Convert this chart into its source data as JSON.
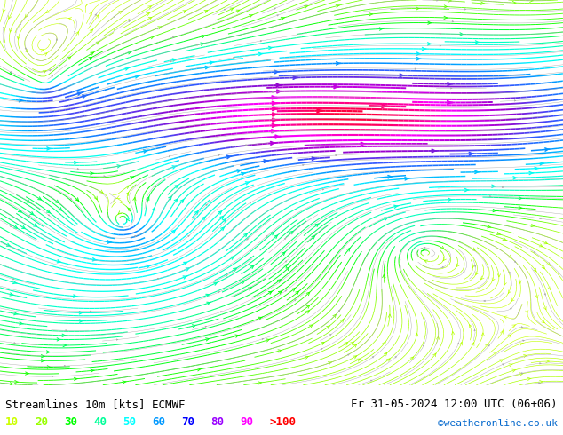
{
  "title_left": "Streamlines 10m [kts] ECMWF",
  "title_right": "Fr 31-05-2024 12:00 UTC (06+06)",
  "watermark": "©weatheronline.co.uk",
  "legend_values": [
    "10",
    "20",
    "30",
    "40",
    "50",
    "60",
    "70",
    "80",
    "90",
    ">100"
  ],
  "legend_colors": [
    "#ccff00",
    "#99ff00",
    "#00ff00",
    "#00ff99",
    "#00ffff",
    "#0099ff",
    "#0000ff",
    "#9900ff",
    "#ff00ff",
    "#ff0000"
  ],
  "background_color": "#c8f0c8",
  "map_bg": "#c8f0c8",
  "fig_width": 6.34,
  "fig_height": 4.9,
  "dpi": 100,
  "bottom_bar_color": "#ffffff",
  "text_color": "#000000",
  "font_size_title": 9,
  "font_size_legend": 9,
  "font_size_watermark": 8
}
